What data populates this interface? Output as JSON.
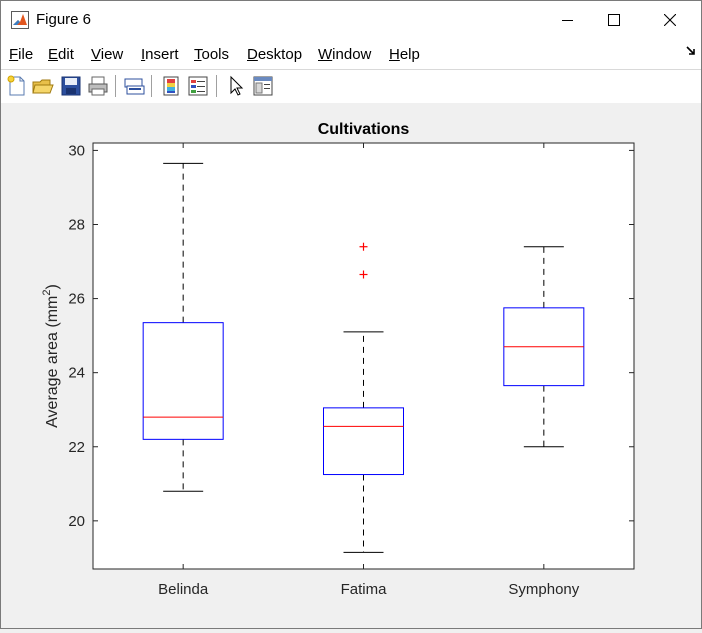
{
  "window": {
    "title": "Figure 6",
    "minimize_icon": "minimize-icon",
    "maximize_icon": "maximize-icon",
    "close_icon": "close-icon"
  },
  "menu": {
    "items": [
      {
        "pre": "",
        "acc": "F",
        "post": "ile"
      },
      {
        "pre": "",
        "acc": "E",
        "post": "dit"
      },
      {
        "pre": "",
        "acc": "V",
        "post": "iew"
      },
      {
        "pre": "",
        "acc": "I",
        "post": "nsert"
      },
      {
        "pre": "",
        "acc": "T",
        "post": "ools"
      },
      {
        "pre": "",
        "acc": "D",
        "post": "esktop"
      },
      {
        "pre": "",
        "acc": "W",
        "post": "indow"
      },
      {
        "pre": "",
        "acc": "H",
        "post": "elp"
      }
    ]
  },
  "toolbar": {
    "icons": [
      "new-figure-icon",
      "open-file-icon",
      "save-figure-icon",
      "print-figure-icon",
      "link-plot-icon",
      "insert-colorbar-icon",
      "insert-legend-icon",
      "edit-plot-icon",
      "property-inspector-icon"
    ]
  },
  "colors": {
    "box": "#0000ff",
    "median": "#ff0000",
    "whisker": "#000000",
    "outlier": "#ff0000"
  },
  "chart_data": {
    "type": "boxplot",
    "title": "Cultivations",
    "xlabel": "",
    "ylabel_main": "Average area (mm",
    "ylabel_sup": "2",
    "ylabel_end": ")",
    "ylim": [
      18.7,
      30.2
    ],
    "yticks": [
      20,
      22,
      24,
      26,
      28,
      30
    ],
    "ytick_labels": [
      "20",
      "22",
      "24",
      "26",
      "28",
      "30"
    ],
    "categories": [
      "Belinda",
      "Fatima",
      "Symphony"
    ],
    "boxes": [
      {
        "name": "Belinda",
        "q1": 22.2,
        "median": 22.8,
        "q3": 25.35,
        "whisker_low": 20.8,
        "whisker_high": 29.65,
        "outliers": []
      },
      {
        "name": "Fatima",
        "q1": 21.25,
        "median": 22.55,
        "q3": 23.05,
        "whisker_low": 19.15,
        "whisker_high": 25.1,
        "outliers": [
          26.65,
          27.4
        ]
      },
      {
        "name": "Symphony",
        "q1": 23.65,
        "median": 24.7,
        "q3": 25.75,
        "whisker_low": 22.0,
        "whisker_high": 27.4,
        "outliers": []
      }
    ],
    "grid": false
  }
}
